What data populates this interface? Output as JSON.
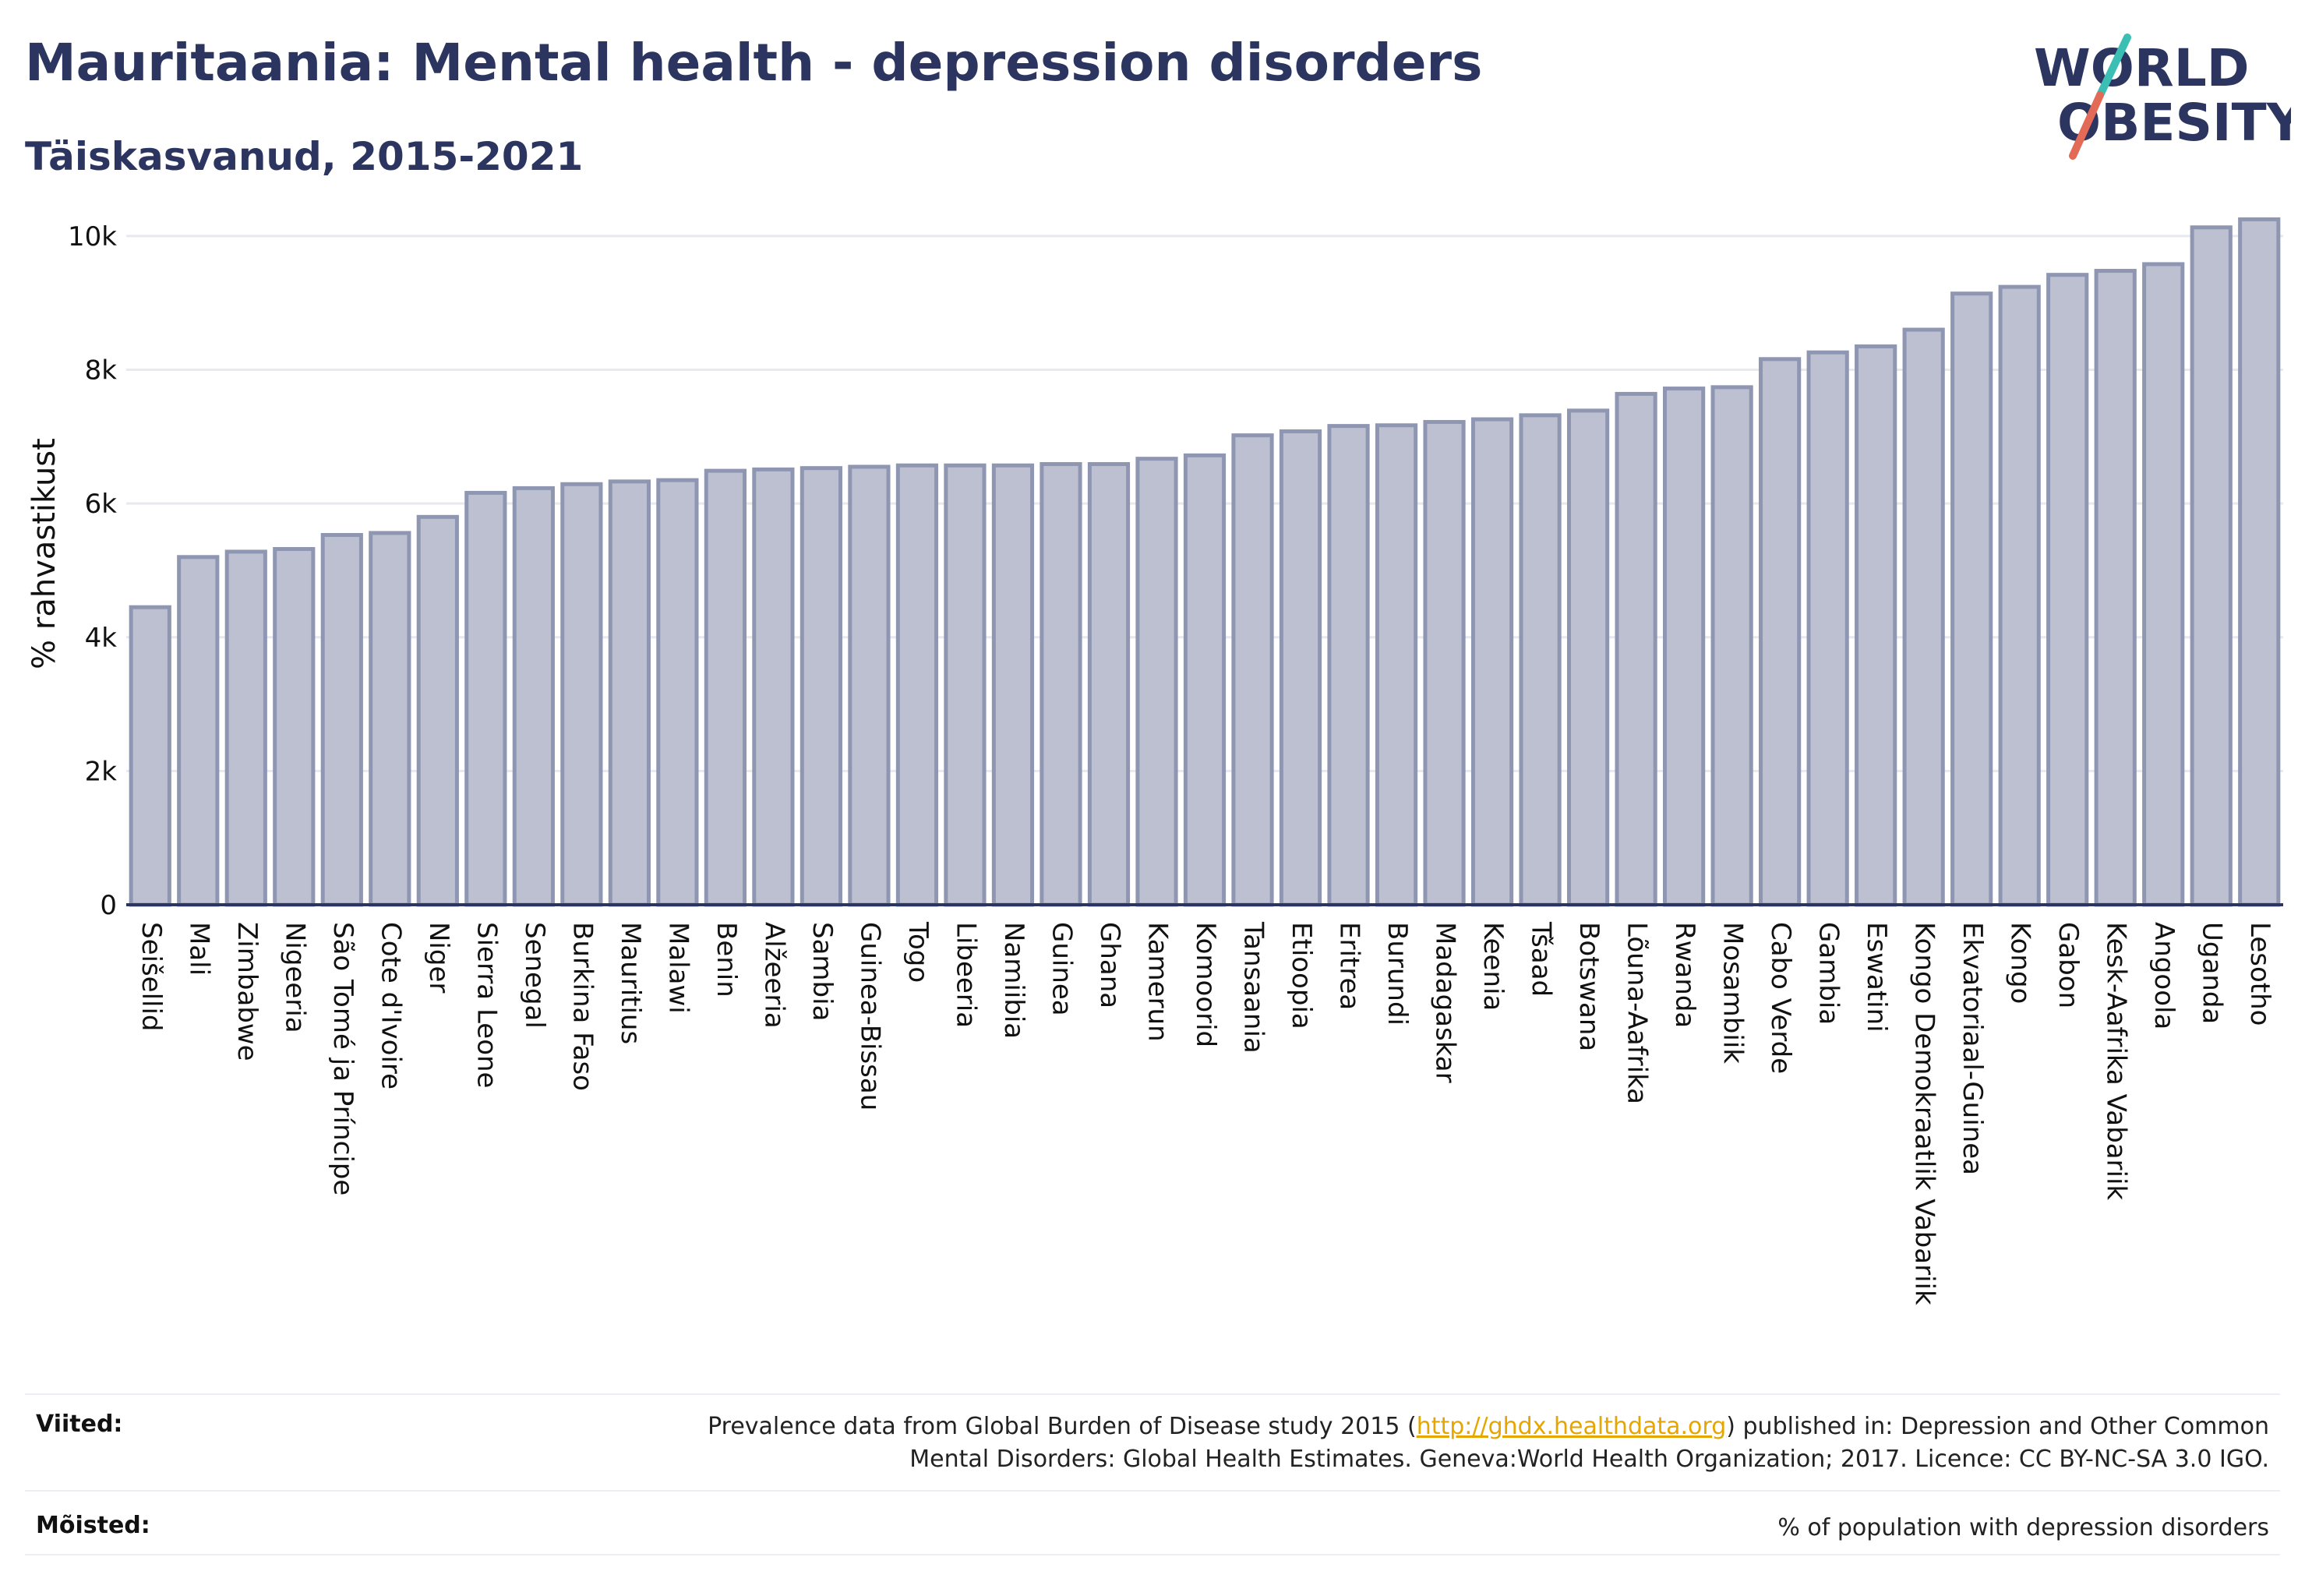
{
  "header": {
    "title": "Mauritaania: Mental health - depression disorders",
    "subtitle": "Täiskasvanud, 2015-2021"
  },
  "logo": {
    "line1": "WORLD",
    "line2": "OBESITY"
  },
  "colors": {
    "title": "#2b3560",
    "bar_fill": "#bcc0d0",
    "bar_stroke": "#8f96b2",
    "grid": "#e7e9ef",
    "baseline": "#2b3560",
    "logo_accent_teal": "#3bbfb4",
    "logo_accent_red": "#e36a57",
    "link": "#e6a600"
  },
  "chart_data": {
    "type": "bar",
    "ylabel": "% rahvastikust",
    "xlabel": "",
    "ylim": [
      0,
      10500
    ],
    "yticks": [
      0,
      2000,
      4000,
      6000,
      8000,
      10000
    ],
    "ytick_labels": [
      "0",
      "2k",
      "4k",
      "6k",
      "8k",
      "10k"
    ],
    "grid": true,
    "categories": [
      "Seišellid",
      "Mali",
      "Zimbabwe",
      "Nigeeria",
      "São Tomé ja Príncipe",
      "Cote d'Ivoire",
      "Niger",
      "Sierra Leone",
      "Senegal",
      "Burkina Faso",
      "Mauritius",
      "Malawi",
      "Benin",
      "Alžeeria",
      "Sambia",
      "Guinea-Bissau",
      "Togo",
      "Libeeria",
      "Namiibia",
      "Guinea",
      "Ghana",
      "Kamerun",
      "Komoorid",
      "Tansaania",
      "Etioopia",
      "Eritrea",
      "Burundi",
      "Madagaskar",
      "Keenia",
      "Tšaad",
      "Botswana",
      "Lõuna-Aafrika",
      "Rwanda",
      "Mosambiik",
      "Cabo Verde",
      "Gambia",
      "Eswatini",
      "Kongo Demokraatlik Vabariik",
      "Ekvatoriaal-Guinea",
      "Kongo",
      "Gabon",
      "Kesk-Aafrika Vabariik",
      "Angoola",
      "Uganda",
      "Lesotho"
    ],
    "values": [
      4450,
      5200,
      5280,
      5320,
      5530,
      5560,
      5800,
      6160,
      6230,
      6290,
      6330,
      6350,
      6490,
      6510,
      6530,
      6550,
      6570,
      6570,
      6570,
      6590,
      6590,
      6670,
      6720,
      7020,
      7080,
      7160,
      7170,
      7220,
      7260,
      7320,
      7390,
      7640,
      7720,
      7740,
      8160,
      8260,
      8350,
      8600,
      9140,
      9240,
      9420,
      9480,
      9580,
      10130,
      10250
    ]
  },
  "footer": {
    "sources_label": "Viited:",
    "sources_pre": "Prevalence data from Global Burden of Disease study 2015 (",
    "sources_link": "http://ghdx.healthdata.org",
    "sources_post": ") published in: Depression and Other Common",
    "sources_line2": "Mental Disorders: Global Health Estimates. Geneva:World Health Organization; 2017. Licence: CC BY-NC-SA 3.0 IGO.",
    "definitions_label": "Mõisted:",
    "definitions_text": "% of population with depression disorders"
  }
}
